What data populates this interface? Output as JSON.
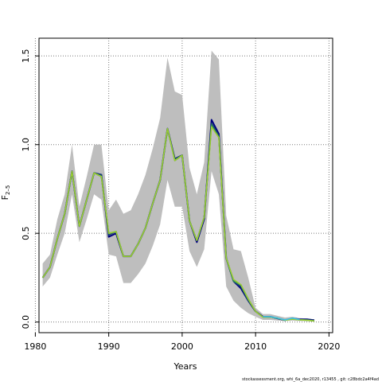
{
  "chart_data": {
    "type": "line",
    "xlabel": "Years",
    "ylabel_main": "F",
    "ylabel_sub": "2–5",
    "xlim": [
      1980.5,
      2020.5
    ],
    "ylim": [
      -0.06,
      1.6
    ],
    "xticks": [
      1980,
      1990,
      2000,
      2010,
      2020
    ],
    "yticks": [
      0.0,
      0.5,
      1.0,
      1.5
    ],
    "ytick_labels": [
      "0.0",
      "0.5",
      "1.0",
      "1.5"
    ],
    "grid": true,
    "x": [
      1981,
      1982,
      1983,
      1984,
      1985,
      1986,
      1987,
      1988,
      1989,
      1990,
      1991,
      1992,
      1993,
      1994,
      1995,
      1996,
      1997,
      1998,
      1999,
      2000,
      2001,
      2002,
      2003,
      2004,
      2005,
      2006,
      2007,
      2008,
      2009,
      2010,
      2011,
      2012,
      2013,
      2014,
      2015,
      2016,
      2017,
      2018
    ],
    "band_upper": [
      0.33,
      0.38,
      0.58,
      0.72,
      1.0,
      0.65,
      0.82,
      1.0,
      1.0,
      0.63,
      0.69,
      0.61,
      0.63,
      0.72,
      0.83,
      0.98,
      1.15,
      1.49,
      1.3,
      1.28,
      0.87,
      0.72,
      0.9,
      1.53,
      1.48,
      0.6,
      0.41,
      0.4,
      0.25,
      0.08,
      0.045,
      0.045,
      0.035,
      0.025,
      0.03,
      0.022,
      0.02,
      0.015
    ],
    "band_lower": [
      0.2,
      0.25,
      0.38,
      0.5,
      0.72,
      0.45,
      0.58,
      0.72,
      0.69,
      0.38,
      0.37,
      0.22,
      0.22,
      0.27,
      0.33,
      0.43,
      0.55,
      0.8,
      0.65,
      0.65,
      0.4,
      0.31,
      0.41,
      0.85,
      0.72,
      0.2,
      0.12,
      0.08,
      0.05,
      0.03,
      0.012,
      0.012,
      0.008,
      0.006,
      0.008,
      0.006,
      0.005,
      0.004
    ],
    "series": [
      {
        "color": "#000080",
        "values": [
          0.25,
          0.31,
          0.47,
          0.61,
          0.85,
          0.54,
          0.69,
          0.84,
          0.83,
          0.48,
          0.5,
          0.37,
          0.37,
          0.44,
          0.53,
          0.67,
          0.8,
          1.09,
          0.92,
          0.94,
          0.57,
          0.45,
          0.58,
          1.14,
          1.06,
          0.36,
          0.23,
          0.19,
          0.12,
          0.06,
          0.03,
          0.03,
          0.02,
          0.01,
          0.02,
          0.015,
          0.015,
          0.01
        ]
      },
      {
        "color": "#1a4d6e",
        "values": [
          0.25,
          0.31,
          0.47,
          0.61,
          0.85,
          0.54,
          0.69,
          0.84,
          0.83,
          0.49,
          0.51,
          0.37,
          0.37,
          0.44,
          0.53,
          0.67,
          0.8,
          1.09,
          0.92,
          0.94,
          0.57,
          0.46,
          0.59,
          1.12,
          1.05,
          0.36,
          0.23,
          0.2,
          0.12,
          0.06,
          0.028,
          0.028,
          0.02,
          0.01,
          0.018,
          0.014,
          0.013,
          0.008
        ]
      },
      {
        "color": "#2e8b57",
        "values": [
          0.25,
          0.31,
          0.47,
          0.61,
          0.85,
          0.54,
          0.69,
          0.84,
          0.82,
          0.5,
          0.51,
          0.37,
          0.37,
          0.44,
          0.53,
          0.67,
          0.8,
          1.09,
          0.91,
          0.94,
          0.57,
          0.46,
          0.59,
          1.11,
          1.04,
          0.36,
          0.23,
          0.21,
          0.13,
          0.06,
          0.028,
          0.028,
          0.022,
          0.01,
          0.018,
          0.012,
          0.01,
          0.006
        ]
      },
      {
        "color": "#9acd32",
        "values": [
          0.25,
          0.31,
          0.47,
          0.61,
          0.85,
          0.54,
          0.69,
          0.84,
          0.82,
          0.5,
          0.51,
          0.37,
          0.37,
          0.44,
          0.53,
          0.67,
          0.8,
          1.09,
          0.91,
          0.94,
          0.57,
          0.46,
          0.59,
          1.1,
          1.04,
          0.36,
          0.24,
          0.21,
          0.13,
          0.06,
          0.027,
          0.028,
          0.022,
          0.01,
          0.016,
          0.012,
          0.01,
          0.006
        ]
      },
      {
        "color": "#40c0e0",
        "values": [
          null,
          null,
          null,
          null,
          null,
          null,
          null,
          null,
          null,
          null,
          null,
          null,
          null,
          null,
          null,
          null,
          null,
          null,
          null,
          null,
          null,
          null,
          null,
          null,
          null,
          null,
          null,
          null,
          null,
          null,
          0.03,
          0.03,
          0.022,
          0.012,
          0.022,
          0.014,
          null,
          null
        ]
      }
    ],
    "band_color": "#bebebe"
  },
  "footer_text": "stockassessment.org,  whi_6a_dec2020,  r13455 ,  git:  c28bdc2a4f4ad"
}
